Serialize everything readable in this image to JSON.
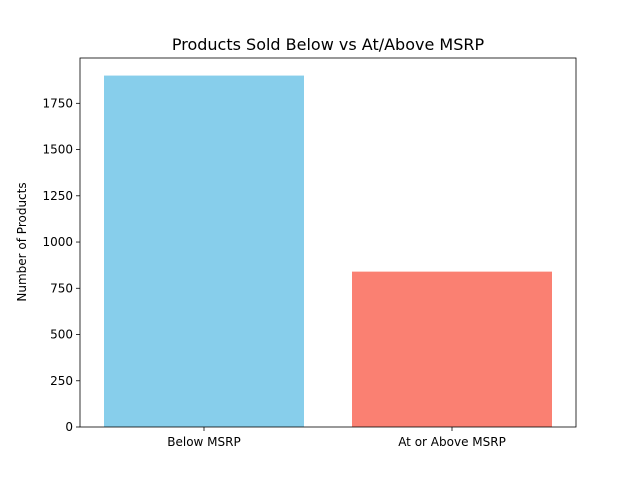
{
  "chart_data": {
    "type": "bar",
    "title": "Products Sold Below vs At/Above MSRP",
    "xlabel": "",
    "ylabel": "Number of Products",
    "categories": [
      "Below MSRP",
      "At or Above MSRP"
    ],
    "values": [
      1900,
      840
    ],
    "colors": [
      "#87ceeb",
      "#fa8072"
    ],
    "ylim": [
      0,
      1995
    ],
    "yticks": [
      0,
      250,
      500,
      750,
      1000,
      1250,
      1500,
      1750
    ],
    "grid": false,
    "legend": "none"
  }
}
